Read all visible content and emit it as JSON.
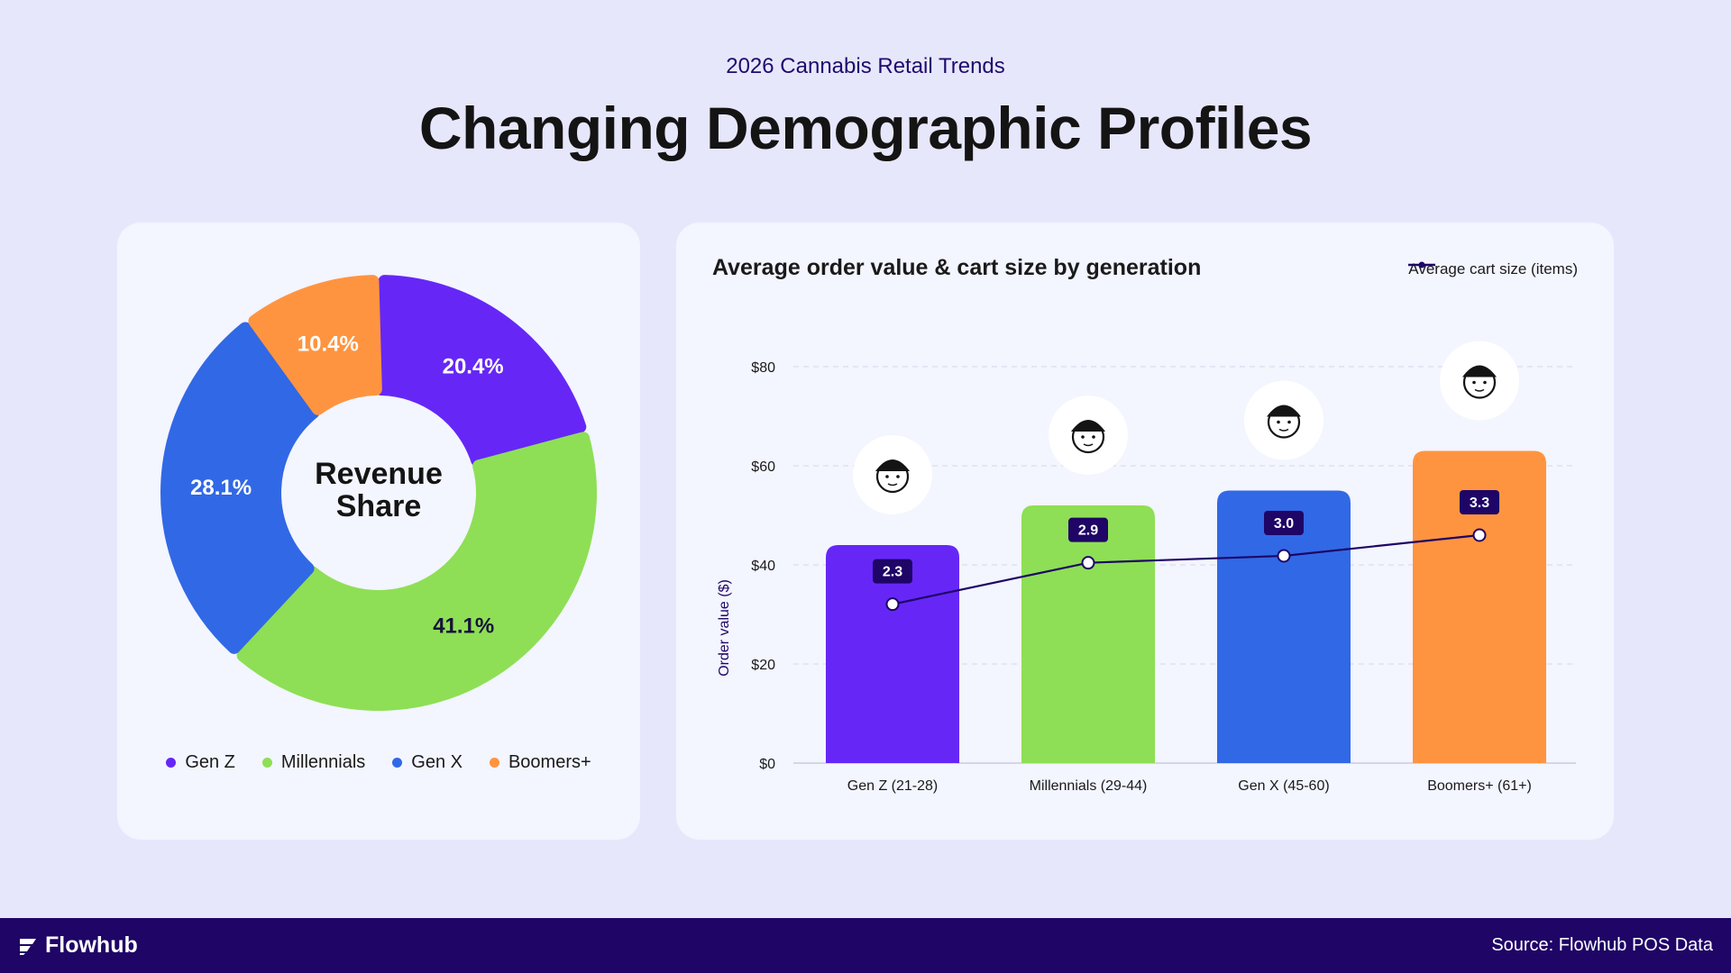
{
  "header": {
    "eyebrow": "2026 Cannabis Retail Trends",
    "title": "Changing Demographic Profiles"
  },
  "colors": {
    "gen_z": "#6627f6",
    "millennials": "#8edf55",
    "gen_x": "#3168e5",
    "boomers": "#ff9440",
    "dark": "#1e0566"
  },
  "chart_data": [
    {
      "type": "pie",
      "title": "Revenue Share",
      "categories": [
        "Gen Z",
        "Millennials",
        "Gen X",
        "Boomers+"
      ],
      "values": [
        20.4,
        41.1,
        28.1,
        10.4
      ],
      "labels": [
        "20.4%",
        "41.1%",
        "28.1%",
        "10.4%"
      ],
      "legend_position": "bottom"
    },
    {
      "type": "bar",
      "title": "Average order value & cart size by generation",
      "categories": [
        "Gen Z (21-28)",
        "Millennials (29-44)",
        "Gen X (45-60)",
        "Boomers+ (61+)"
      ],
      "ylabel": "Order value ($)",
      "ylim": [
        0,
        80
      ],
      "yticks": [
        "$0",
        "$20",
        "$40",
        "$60",
        "$80"
      ],
      "grid": true,
      "series": [
        {
          "values": [
            44,
            52,
            55,
            63
          ]
        },
        {
          "name": "Average cart size (items)",
          "type": "line",
          "values": [
            2.3,
            2.9,
            3.0,
            3.3
          ],
          "labels": [
            "2.3",
            "2.9",
            "3.0",
            "3.3"
          ]
        }
      ],
      "legend_position": "top-right"
    }
  ],
  "footer": {
    "brand": "Flowhub",
    "source": "Source: Flowhub POS Data"
  }
}
